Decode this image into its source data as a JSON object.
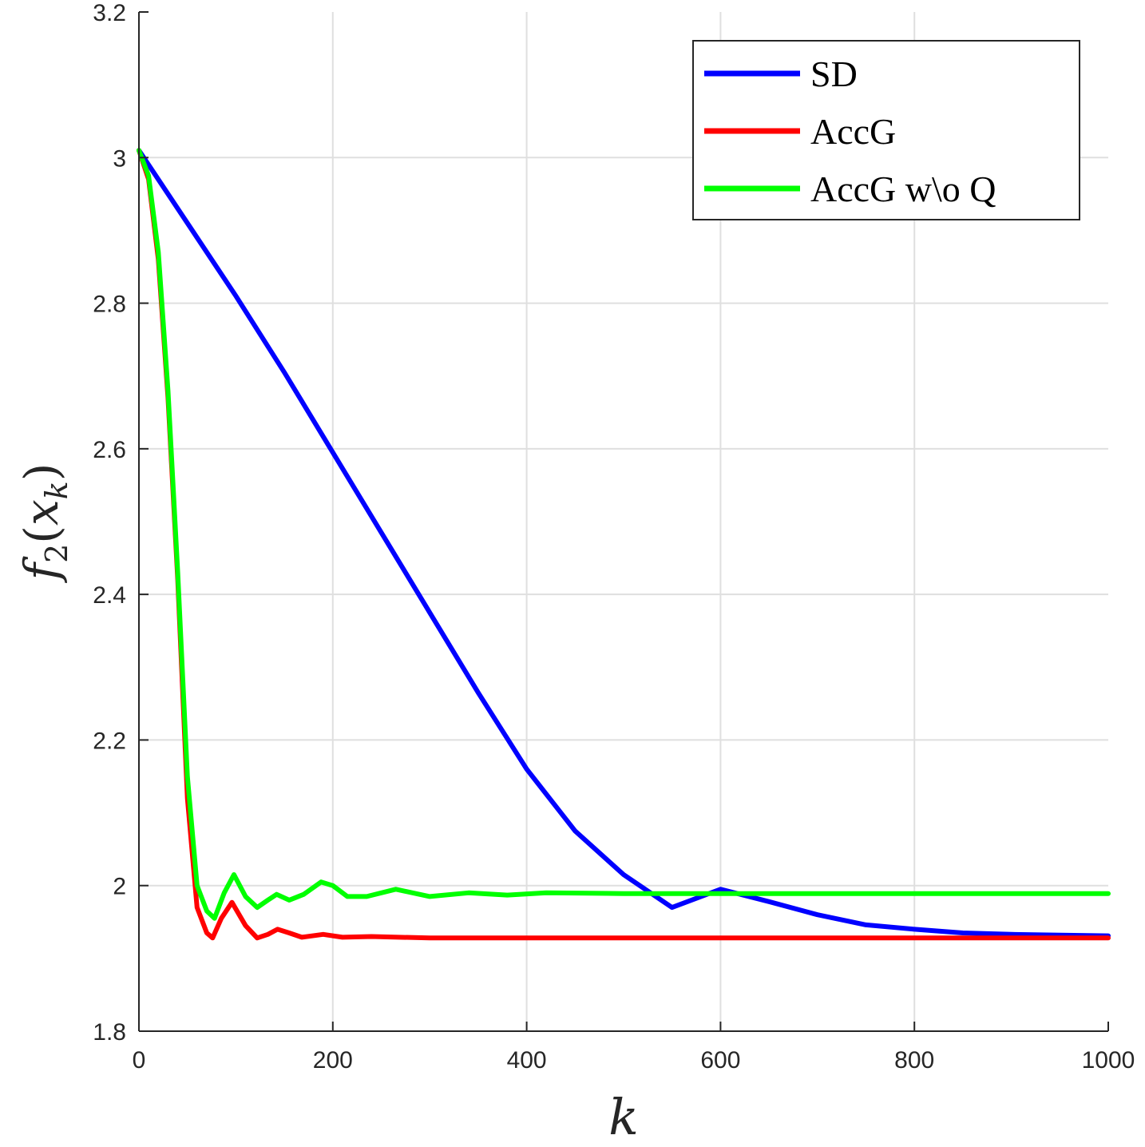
{
  "chart_data": {
    "type": "line",
    "title": "",
    "xlabel": "k",
    "ylabel": "f_2(x_k)",
    "ylabel_display": {
      "base": "f",
      "sub": "2",
      "open": "(",
      "var": "x",
      "varsub": "k",
      "close": ")"
    },
    "xlim": [
      0,
      1000
    ],
    "ylim": [
      1.8,
      3.2
    ],
    "xticks": [
      0,
      200,
      400,
      600,
      800,
      1000
    ],
    "xtick_labels": [
      "0",
      "200",
      "400",
      "600",
      "800",
      "1000"
    ],
    "yticks": [
      1.8,
      2.0,
      2.2,
      2.4,
      2.6,
      2.8,
      3.0,
      3.2
    ],
    "ytick_labels": [
      "1.8",
      "2",
      "2.2",
      "2.4",
      "2.6",
      "2.8",
      "3",
      "3.2"
    ],
    "grid": true,
    "legend_position": "top-right",
    "series": [
      {
        "name": "SD",
        "color": "#0000ff",
        "x": [
          0,
          50,
          100,
          150,
          200,
          250,
          300,
          350,
          400,
          450,
          500,
          550,
          600,
          650,
          700,
          750,
          800,
          850,
          900,
          950,
          1000
        ],
        "y": [
          3.01,
          2.91,
          2.81,
          2.705,
          2.595,
          2.485,
          2.375,
          2.265,
          2.16,
          2.075,
          2.015,
          1.97,
          1.995,
          1.978,
          1.96,
          1.946,
          1.94,
          1.935,
          1.933,
          1.932,
          1.931
        ]
      },
      {
        "name": "AccG",
        "color": "#ff0000",
        "x": [
          0,
          10,
          20,
          30,
          40,
          50,
          60,
          70,
          76,
          85,
          96,
          110,
          122,
          133,
          143,
          155,
          168,
          190,
          210,
          240,
          300,
          1000
        ],
        "y": [
          3.01,
          2.97,
          2.86,
          2.67,
          2.42,
          2.12,
          1.97,
          1.935,
          1.928,
          1.955,
          1.977,
          1.945,
          1.928,
          1.933,
          1.94,
          1.935,
          1.929,
          1.933,
          1.929,
          1.93,
          1.928,
          1.928
        ]
      },
      {
        "name": "AccG w\\o Q",
        "color": "#00ff00",
        "x": [
          0,
          10,
          20,
          30,
          40,
          50,
          60,
          70,
          78,
          88,
          98,
          110,
          122,
          133,
          142,
          155,
          170,
          188,
          200,
          215,
          235,
          265,
          300,
          340,
          380,
          420,
          500,
          600,
          1000
        ],
        "y": [
          3.01,
          2.975,
          2.87,
          2.68,
          2.43,
          2.15,
          2.0,
          1.965,
          1.955,
          1.99,
          2.015,
          1.985,
          1.97,
          1.98,
          1.988,
          1.98,
          1.988,
          2.005,
          2.0,
          1.985,
          1.985,
          1.995,
          1.985,
          1.99,
          1.987,
          1.99,
          1.989,
          1.989,
          1.989
        ]
      }
    ]
  }
}
